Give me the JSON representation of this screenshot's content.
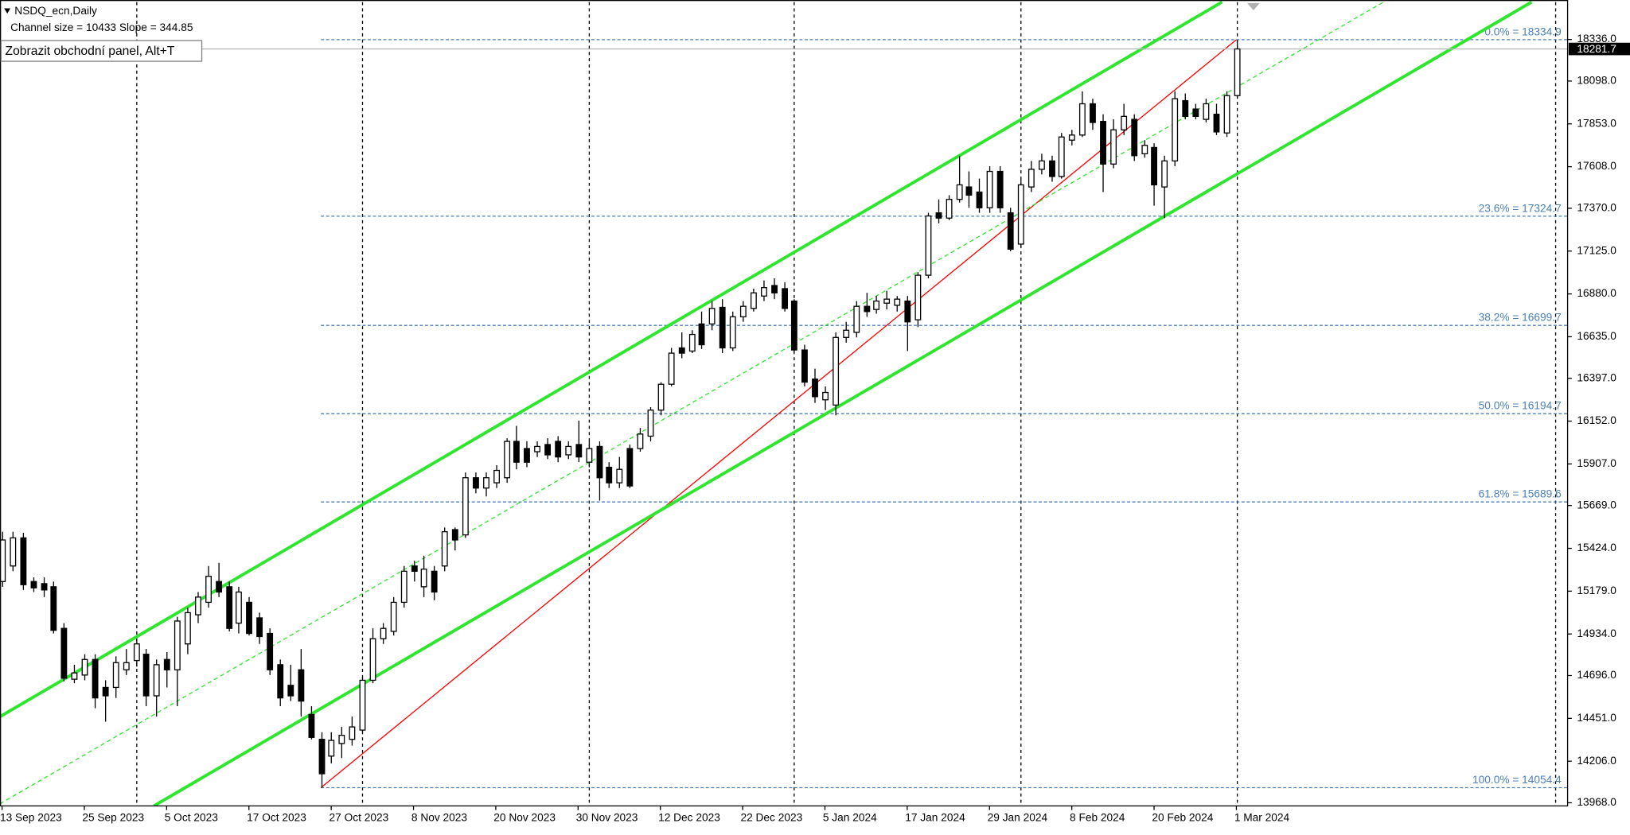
{
  "chart_data": {
    "type": "candlestick",
    "title": "NSDQ_ecn,Daily",
    "subtitle": "Channel size = 10433 Slope = 344.85",
    "panel_button": "Zobrazit obchodní panel, Alt+T",
    "xlim": [
      -0.2,
      152.2
    ],
    "ylim": [
      13950,
      18550
    ],
    "xticks": [
      {
        "value": 0,
        "label": "13 Sep 2023"
      },
      {
        "value": 8,
        "label": "25 Sep 2023"
      },
      {
        "value": 16,
        "label": "5 Oct 2023"
      },
      {
        "value": 24,
        "label": "17 Oct 2023"
      },
      {
        "value": 32,
        "label": "27 Oct 2023"
      },
      {
        "value": 40,
        "label": "8 Nov 2023"
      },
      {
        "value": 48,
        "label": "20 Nov 2023"
      },
      {
        "value": 56,
        "label": "30 Nov 2023"
      },
      {
        "value": 64,
        "label": "12 Dec 2023"
      },
      {
        "value": 72,
        "label": "22 Dec 2023"
      },
      {
        "value": 80,
        "label": "5 Jan 2024"
      },
      {
        "value": 88,
        "label": "17 Jan 2024"
      },
      {
        "value": 96,
        "label": "29 Jan 2024"
      },
      {
        "value": 104,
        "label": "8 Feb 2024"
      },
      {
        "value": 112,
        "label": "20 Feb 2024"
      },
      {
        "value": 120,
        "label": "1 Mar 2024"
      }
    ],
    "xgrid": [
      13,
      35,
      57,
      77,
      99,
      120,
      151
    ],
    "yticks": [
      {
        "value": 18336,
        "label": "18336.0"
      },
      {
        "value": 18098,
        "label": "18098.0"
      },
      {
        "value": 17853,
        "label": "17853.0"
      },
      {
        "value": 17608,
        "label": "17608.0"
      },
      {
        "value": 17370,
        "label": "17370.0"
      },
      {
        "value": 17125,
        "label": "17125.0"
      },
      {
        "value": 16880,
        "label": "16880.0"
      },
      {
        "value": 16635,
        "label": "16635.0"
      },
      {
        "value": 16397,
        "label": "16397.0"
      },
      {
        "value": 16152,
        "label": "16152.0"
      },
      {
        "value": 15907,
        "label": "15907.0"
      },
      {
        "value": 15669,
        "label": "15669.0"
      },
      {
        "value": 15424,
        "label": "15424.0"
      },
      {
        "value": 15179,
        "label": "15179.0"
      },
      {
        "value": 14934,
        "label": "14934.0"
      },
      {
        "value": 14696,
        "label": "14696.0"
      },
      {
        "value": 14451,
        "label": "14451.0"
      },
      {
        "value": 14206,
        "label": "14206.0"
      },
      {
        "value": 13968,
        "label": "13968.0"
      }
    ],
    "current_price": 18281.7,
    "up_color": "#ffffff",
    "down_color": "#000000",
    "open": [
      15234,
      15323,
      15484,
      15234,
      15222,
      15204,
      14966,
      14675,
      14699,
      14788,
      14628,
      14628,
      14729,
      14782,
      14818,
      14580,
      14788,
      14729,
      14877,
      15044,
      15115,
      15234,
      15204,
      14996,
      15115,
      15026,
      14937,
      14758,
      14640,
      14729,
      14473,
      14331,
      14235,
      14307,
      14331,
      14384,
      14669,
      14907,
      14949,
      15115,
      15323,
      15204,
      15293,
      15323,
      15531,
      15501,
      15828,
      15769,
      15799,
      15828,
      16036,
      15995,
      15977,
      16018,
      16036,
      15959,
      16018,
      15917,
      16007,
      15888,
      15799,
      15995,
      15995,
      16066,
      16215,
      16363,
      16571,
      16553,
      16708,
      16708,
      16803,
      16571,
      16749,
      16797,
      16868,
      16928,
      16910,
      16839,
      16559,
      16393,
      16274,
      16244,
      16631,
      16660,
      16809,
      16791,
      16827,
      16815,
      16839,
      16732,
      16987,
      17344,
      17314,
      17421,
      17492,
      17463,
      17373,
      17581,
      17344,
      17165,
      17492,
      17593,
      17641,
      17552,
      17760,
      17789,
      17968,
      17867,
      17623,
      17819,
      17879,
      17682,
      17718,
      17492,
      17641,
      17986,
      17938,
      17879,
      17908,
      17801,
      18015
    ],
    "high": [
      15519,
      15519,
      15513,
      15258,
      15258,
      15234,
      14996,
      14758,
      14818,
      14818,
      14669,
      14806,
      14848,
      14907,
      14848,
      14788,
      14830,
      15032,
      15085,
      15174,
      15323,
      15341,
      15234,
      15204,
      15145,
      15056,
      14966,
      14788,
      14758,
      14848,
      14521,
      14372,
      14372,
      14402,
      14461,
      14687,
      14966,
      14996,
      15145,
      15323,
      15353,
      15382,
      15323,
      15543,
      15543,
      15858,
      15858,
      15858,
      15900,
      16054,
      16125,
      16036,
      16036,
      16054,
      16066,
      16036,
      16155,
      16036,
      16036,
      15917,
      15947,
      16018,
      16113,
      16232,
      16375,
      16571,
      16660,
      16672,
      16779,
      16839,
      16850,
      16779,
      16839,
      16910,
      16957,
      16969,
      16946,
      16850,
      16589,
      16452,
      16351,
      16660,
      16720,
      16839,
      16886,
      16868,
      16898,
      16868,
      16868,
      17005,
      17344,
      17421,
      17445,
      17671,
      17581,
      17540,
      17611,
      17611,
      17373,
      17540,
      17641,
      17682,
      17671,
      17801,
      17819,
      18039,
      17997,
      17908,
      17879,
      17968,
      17908,
      17760,
      17742,
      17671,
      18039,
      18027,
      17968,
      17997,
      17968,
      18039,
      18334.9
    ],
    "low": [
      15204,
      15293,
      15186,
      15174,
      15145,
      14937,
      14663,
      14652,
      14669,
      14509,
      14432,
      14568,
      14699,
      14747,
      14521,
      14461,
      14628,
      14521,
      14818,
      14996,
      15085,
      15145,
      14949,
      14937,
      14925,
      14877,
      14699,
      14521,
      14550,
      14461,
      14331,
      14054.4,
      14194,
      14224,
      14295,
      14372,
      14652,
      14877,
      14925,
      15085,
      15234,
      15145,
      15127,
      15293,
      15412,
      15484,
      15739,
      15721,
      15769,
      15799,
      15876,
      15888,
      15947,
      15935,
      15917,
      15935,
      15917,
      15888,
      15697,
      15769,
      15769,
      15769,
      15977,
      16036,
      16185,
      16351,
      16512,
      16541,
      16565,
      16672,
      16541,
      16553,
      16720,
      16779,
      16839,
      16850,
      16779,
      16541,
      16351,
      16256,
      16215,
      16185,
      16601,
      16631,
      16749,
      16767,
      16791,
      16779,
      16553,
      16690,
      16969,
      17284,
      17302,
      17403,
      17373,
      17344,
      17344,
      17344,
      17124,
      17148,
      17463,
      17564,
      17522,
      17540,
      17730,
      17778,
      17819,
      17463,
      17599,
      17789,
      17641,
      17659,
      17385,
      17314,
      17611,
      17879,
      17879,
      17861,
      17789,
      17778,
      17997
    ],
    "close": [
      15472,
      15484,
      15216,
      15198,
      15186,
      14955,
      14681,
      14711,
      14788,
      14568,
      14580,
      14770,
      14770,
      14877,
      14580,
      14758,
      14729,
      15008,
      15056,
      15145,
      15264,
      15174,
      14966,
      15174,
      14937,
      14919,
      14729,
      14568,
      14580,
      14550,
      14342,
      14134,
      14325,
      14354,
      14402,
      14669,
      14907,
      14966,
      15115,
      15293,
      15293,
      15305,
      15174,
      15519,
      15472,
      15828,
      15769,
      15828,
      15870,
      16036,
      15917,
      15917,
      16007,
      15959,
      15947,
      16007,
      15947,
      15995,
      15828,
      15799,
      15876,
      15781,
      16078,
      16215,
      16363,
      16541,
      16541,
      16648,
      16589,
      16797,
      16571,
      16749,
      16809,
      16886,
      16916,
      16886,
      16797,
      16559,
      16375,
      16292,
      16316,
      16631,
      16672,
      16809,
      16779,
      16839,
      16850,
      16850,
      16720,
      16987,
      17326,
      17314,
      17421,
      17504,
      17445,
      17373,
      17581,
      17373,
      17136,
      17504,
      17593,
      17641,
      17552,
      17778,
      17789,
      17968,
      17861,
      17623,
      17819,
      17896,
      17671,
      17730,
      17504,
      17641,
      17997,
      17896,
      17896,
      17968,
      17807,
      18015,
      18281.7
    ],
    "fibo": {
      "color": "#4a7fb8",
      "line_color": "#ff0000",
      "x": [
        31,
        120
      ],
      "levels": [
        {
          "value": 18334.9,
          "label": "0.0% = 18334.9"
        },
        {
          "value": 17324.7,
          "label": "23.6% = 17324.7"
        },
        {
          "value": 16699.7,
          "label": "38.2% = 16699.7"
        },
        {
          "value": 16194.7,
          "label": "50.0% = 16194.7"
        },
        {
          "value": 15689.6,
          "label": "61.8% = 15689.6"
        },
        {
          "value": 14054.4,
          "label": "100.0% = 14054.4"
        }
      ]
    },
    "channel": {
      "color": "#2fe62f",
      "lines": [
        {
          "x": [
            -0.2,
            118.6
          ],
          "y": [
            14461,
            18550
          ],
          "dashed": false
        },
        {
          "x": [
            14.76,
            148.7
          ],
          "y": [
            13950,
            18550
          ],
          "dashed": false
        },
        {
          "x": [
            -0.2,
            134.3
          ],
          "y": [
            13962,
            18550
          ],
          "dashed": true
        }
      ]
    }
  }
}
